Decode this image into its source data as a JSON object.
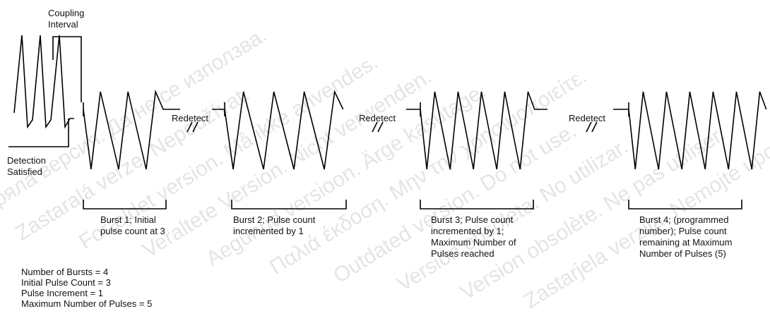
{
  "coupling_interval": [
    "Coupling",
    "Interval"
  ],
  "detection_satisfied": [
    "Detection",
    "Satisfied"
  ],
  "redetect": [
    "Redetect",
    "Redetect",
    "Redetect"
  ],
  "bursts": [
    [
      "Burst 1; Initial",
      "pulse count at 3"
    ],
    [
      "Burst 2; Pulse count",
      "incremented by 1"
    ],
    [
      "Burst 3; Pulse count",
      "incremented by 1;",
      "Maximum Number of",
      "Pulses reached"
    ],
    [
      "Burst 4; (programmed",
      "number); Pulse count",
      "remaining at Maximum",
      "Number of Pulses (5)"
    ]
  ],
  "parameters": [
    "Number of Bursts = 4",
    "Initial Pulse Count = 3",
    "Pulse Increment = 1",
    "Maximum Number of Pulses = 5"
  ],
  "watermark": [
    "Остаряла версия. Да не се използва.",
    "Zastaralá verze. Nepoužívat.",
    "Forældet version. Må ikke anvendes.",
    "Veraltete Version. Nicht verwenden.",
    "Aegunud versioon. Ärge kasutage.",
    "Παλιά έκδοση. Μην την χρησιμοποιείτε.",
    "Outdated version. Do not use.",
    "Versión obsoleta. No utilizar.",
    "Version obsolète. Ne pas utiliser.",
    "Zastarjela verzija. Nemojte upotrebljavati."
  ]
}
